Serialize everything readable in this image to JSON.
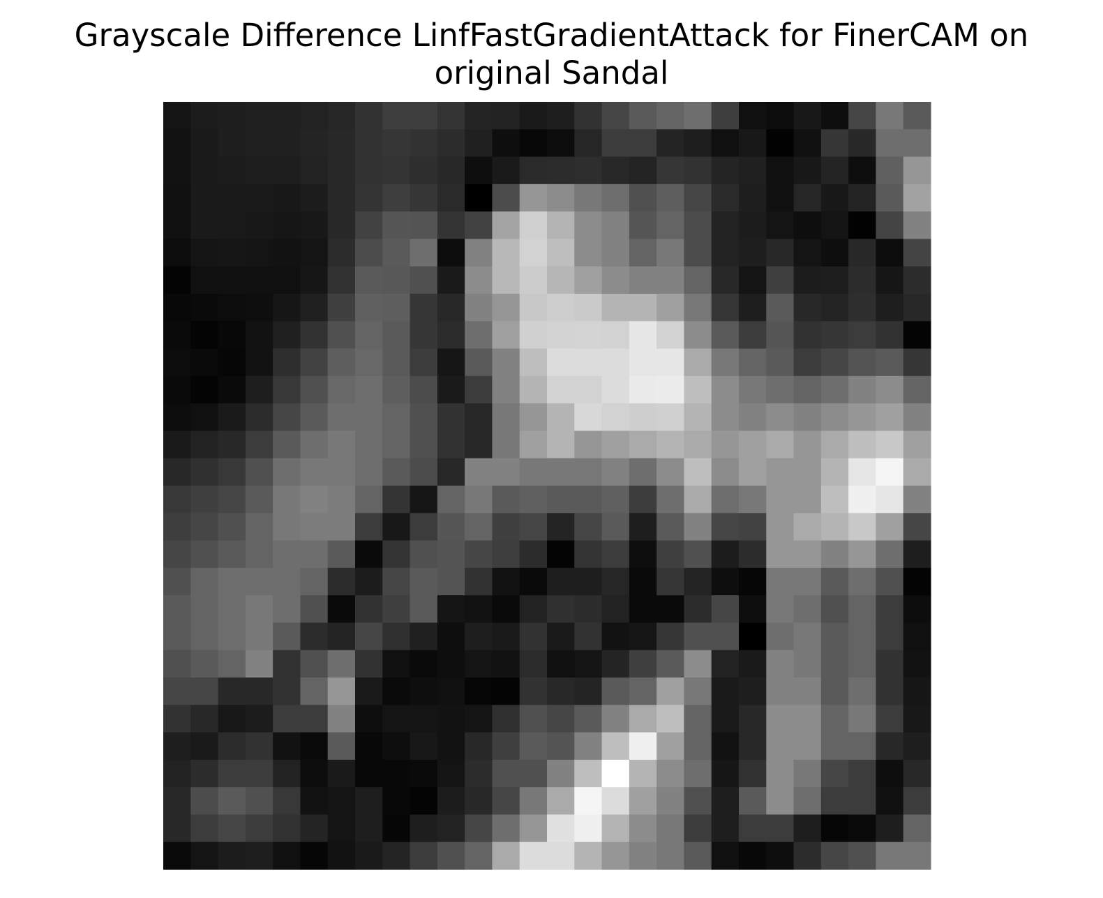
{
  "chart_data": {
    "type": "heatmap",
    "title_lines": [
      "Grayscale Difference LinfFastGradientAttack for FinerCAM on",
      "original Sandal"
    ],
    "colormap": "gray",
    "axis": "off",
    "rows": 28,
    "cols": 28,
    "values": [
      [
        20,
        28,
        30,
        32,
        32,
        34,
        38,
        50,
        62,
        62,
        52,
        36,
        34,
        26,
        30,
        50,
        70,
        90,
        100,
        110,
        62,
        16,
        12,
        24,
        14,
        70,
        120,
        90
      ],
      [
        18,
        26,
        30,
        32,
        32,
        36,
        40,
        50,
        54,
        50,
        44,
        32,
        14,
        8,
        12,
        38,
        60,
        60,
        36,
        30,
        16,
        24,
        2,
        16,
        54,
        40,
        110,
        110
      ],
      [
        18,
        26,
        28,
        30,
        30,
        34,
        40,
        50,
        52,
        46,
        40,
        14,
        26,
        42,
        44,
        46,
        40,
        36,
        54,
        50,
        36,
        32,
        16,
        24,
        36,
        14,
        96,
        150
      ],
      [
        16,
        26,
        26,
        26,
        24,
        28,
        40,
        52,
        62,
        54,
        42,
        0,
        76,
        150,
        140,
        120,
        110,
        80,
        94,
        70,
        42,
        30,
        16,
        38,
        24,
        36,
        90,
        162
      ],
      [
        16,
        26,
        26,
        24,
        22,
        24,
        40,
        66,
        86,
        84,
        52,
        66,
        164,
        208,
        180,
        140,
        130,
        86,
        100,
        76,
        34,
        28,
        20,
        14,
        20,
        2,
        68,
        130
      ],
      [
        12,
        20,
        22,
        20,
        18,
        20,
        44,
        76,
        90,
        110,
        12,
        130,
        184,
        210,
        190,
        140,
        130,
        100,
        120,
        76,
        34,
        30,
        40,
        20,
        14,
        40,
        12,
        68
      ],
      [
        4,
        16,
        16,
        16,
        16,
        22,
        50,
        90,
        88,
        80,
        26,
        140,
        184,
        204,
        182,
        160,
        140,
        130,
        130,
        100,
        40,
        20,
        64,
        28,
        30,
        44,
        22,
        44
      ],
      [
        8,
        10,
        12,
        14,
        22,
        32,
        64,
        96,
        94,
        54,
        40,
        130,
        150,
        200,
        206,
        202,
        180,
        180,
        160,
        120,
        54,
        30,
        90,
        40,
        36,
        46,
        30,
        40
      ],
      [
        10,
        4,
        8,
        18,
        32,
        50,
        80,
        100,
        90,
        54,
        44,
        110,
        160,
        208,
        210,
        212,
        210,
        230,
        210,
        140,
        90,
        60,
        86,
        50,
        54,
        60,
        50,
        4
      ],
      [
        12,
        10,
        6,
        18,
        46,
        66,
        94,
        104,
        90,
        60,
        22,
        90,
        130,
        190,
        220,
        220,
        220,
        230,
        230,
        170,
        120,
        100,
        90,
        60,
        70,
        84,
        90,
        54
      ],
      [
        10,
        4,
        10,
        30,
        56,
        80,
        104,
        110,
        94,
        76,
        26,
        60,
        130,
        180,
        210,
        210,
        220,
        234,
        236,
        190,
        140,
        120,
        110,
        100,
        110,
        130,
        140,
        100
      ],
      [
        12,
        16,
        26,
        44,
        70,
        90,
        110,
        110,
        100,
        80,
        50,
        40,
        120,
        150,
        180,
        216,
        210,
        206,
        208,
        180,
        140,
        130,
        140,
        130,
        140,
        150,
        160,
        130
      ],
      [
        26,
        34,
        40,
        60,
        90,
        110,
        120,
        110,
        100,
        80,
        50,
        40,
        120,
        160,
        180,
        150,
        160,
        170,
        180,
        170,
        150,
        160,
        170,
        150,
        170,
        190,
        200,
        160
      ],
      [
        40,
        48,
        56,
        80,
        110,
        120,
        120,
        110,
        90,
        76,
        40,
        130,
        130,
        120,
        120,
        120,
        130,
        110,
        140,
        190,
        140,
        160,
        150,
        150,
        180,
        230,
        245,
        170
      ],
      [
        56,
        64,
        70,
        90,
        120,
        130,
        124,
        100,
        52,
        22,
        100,
        120,
        90,
        96,
        90,
        90,
        96,
        60,
        110,
        170,
        110,
        120,
        150,
        150,
        190,
        240,
        230,
        130
      ],
      [
        62,
        70,
        80,
        100,
        120,
        124,
        124,
        60,
        24,
        60,
        86,
        100,
        64,
        70,
        36,
        70,
        90,
        30,
        90,
        130,
        70,
        66,
        150,
        170,
        180,
        200,
        160,
        70
      ],
      [
        70,
        80,
        90,
        100,
        110,
        110,
        90,
        10,
        52,
        80,
        84,
        70,
        62,
        44,
        4,
        52,
        60,
        14,
        64,
        80,
        28,
        44,
        150,
        150,
        130,
        150,
        110,
        30
      ],
      [
        80,
        100,
        110,
        110,
        110,
        100,
        44,
        28,
        70,
        90,
        84,
        50,
        18,
        10,
        30,
        30,
        38,
        10,
        54,
        36,
        14,
        6,
        120,
        120,
        90,
        110,
        80,
        4
      ],
      [
        90,
        100,
        110,
        120,
        110,
        80,
        10,
        50,
        64,
        90,
        20,
        18,
        10,
        34,
        48,
        44,
        34,
        10,
        10,
        44,
        70,
        14,
        120,
        110,
        80,
        100,
        60,
        12
      ],
      [
        90,
        100,
        110,
        120,
        90,
        44,
        36,
        70,
        48,
        32,
        14,
        30,
        26,
        50,
        26,
        50,
        18,
        22,
        54,
        80,
        80,
        0,
        110,
        120,
        90,
        100,
        60,
        16
      ],
      [
        80,
        90,
        100,
        130,
        50,
        80,
        110,
        50,
        16,
        10,
        14,
        20,
        18,
        44,
        16,
        20,
        36,
        64,
        90,
        140,
        34,
        26,
        130,
        120,
        90,
        100,
        50,
        18
      ],
      [
        70,
        70,
        40,
        40,
        50,
        100,
        150,
        26,
        10,
        14,
        16,
        6,
        4,
        50,
        40,
        36,
        90,
        100,
        160,
        120,
        26,
        30,
        130,
        130,
        90,
        110,
        50,
        22
      ],
      [
        50,
        40,
        24,
        28,
        60,
        60,
        130,
        14,
        20,
        20,
        18,
        20,
        48,
        80,
        70,
        90,
        130,
        170,
        190,
        100,
        26,
        40,
        140,
        140,
        100,
        120,
        60,
        24
      ],
      [
        30,
        26,
        44,
        50,
        18,
        10,
        90,
        8,
        14,
        24,
        18,
        40,
        64,
        90,
        84,
        130,
        190,
        240,
        160,
        100,
        18,
        40,
        140,
        140,
        100,
        100,
        40,
        30
      ],
      [
        34,
        44,
        60,
        60,
        34,
        12,
        26,
        8,
        8,
        10,
        20,
        44,
        80,
        80,
        130,
        190,
        255,
        180,
        140,
        110,
        22,
        50,
        140,
        120,
        70,
        60,
        14,
        40
      ],
      [
        40,
        76,
        90,
        80,
        56,
        18,
        20,
        30,
        8,
        4,
        28,
        40,
        70,
        120,
        170,
        245,
        220,
        160,
        130,
        80,
        30,
        90,
        140,
        110,
        60,
        60,
        16,
        60
      ],
      [
        40,
        60,
        70,
        60,
        50,
        36,
        20,
        30,
        6,
        30,
        34,
        70,
        110,
        150,
        225,
        240,
        180,
        140,
        120,
        60,
        30,
        60,
        60,
        30,
        6,
        10,
        30,
        100
      ],
      [
        10,
        20,
        28,
        30,
        16,
        6,
        18,
        26,
        36,
        60,
        80,
        100,
        170,
        220,
        220,
        180,
        150,
        130,
        120,
        90,
        16,
        8,
        14,
        44,
        70,
        80,
        120,
        120
      ]
    ]
  }
}
